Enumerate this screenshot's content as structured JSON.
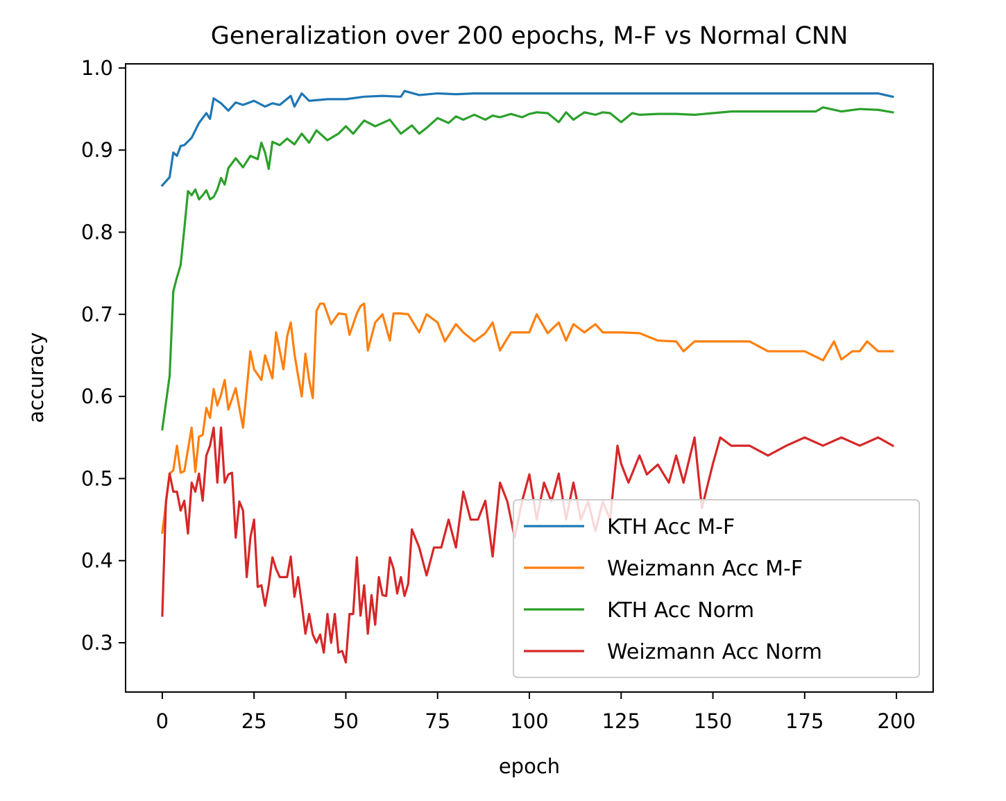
{
  "chart_data": {
    "type": "line",
    "title": "Generalization over 200 epochs, M-F vs Normal CNN",
    "xlabel": "epoch",
    "ylabel": "accuracy",
    "xlim": [
      -10,
      210
    ],
    "ylim": [
      0.24,
      1.005
    ],
    "xticks": [
      0,
      25,
      50,
      75,
      100,
      125,
      150,
      175,
      200
    ],
    "yticks": [
      0.3,
      0.4,
      0.5,
      0.6,
      0.7,
      0.8,
      0.9,
      1.0
    ],
    "grid": false,
    "legend_position": "lower-right",
    "series": [
      {
        "name": "KTH Acc M-F",
        "color": "#1f77b4",
        "x": [
          0,
          2,
          3,
          4,
          5,
          6,
          8,
          10,
          12,
          13,
          14,
          16,
          18,
          20,
          22,
          25,
          28,
          30,
          32,
          35,
          36,
          38,
          40,
          45,
          50,
          55,
          60,
          65,
          66,
          70,
          75,
          80,
          85,
          90,
          95,
          100,
          110,
          120,
          130,
          140,
          150,
          160,
          170,
          180,
          190,
          195,
          199
        ],
        "values": [
          0.857,
          0.867,
          0.897,
          0.893,
          0.905,
          0.906,
          0.915,
          0.933,
          0.945,
          0.938,
          0.963,
          0.957,
          0.948,
          0.958,
          0.955,
          0.96,
          0.953,
          0.957,
          0.955,
          0.966,
          0.953,
          0.969,
          0.96,
          0.962,
          0.962,
          0.965,
          0.966,
          0.965,
          0.972,
          0.967,
          0.969,
          0.968,
          0.969,
          0.969,
          0.969,
          0.969,
          0.969,
          0.969,
          0.969,
          0.969,
          0.969,
          0.969,
          0.969,
          0.969,
          0.969,
          0.969,
          0.965
        ]
      },
      {
        "name": "Weizmann Acc M-F",
        "color": "#ff7f0e",
        "x": [
          0,
          2,
          3,
          4,
          5,
          6,
          8,
          9,
          10,
          11,
          12,
          13,
          14,
          15,
          16,
          17,
          18,
          20,
          22,
          24,
          25,
          27,
          28,
          30,
          31,
          33,
          34,
          35,
          36,
          37,
          38,
          39,
          40,
          41,
          42,
          43,
          44,
          46,
          48,
          50,
          51,
          53,
          54,
          55,
          56,
          58,
          60,
          62,
          63,
          65,
          67,
          70,
          72,
          75,
          77,
          80,
          82,
          85,
          88,
          90,
          92,
          95,
          98,
          100,
          102,
          105,
          108,
          110,
          112,
          115,
          118,
          120,
          125,
          130,
          135,
          140,
          142,
          145,
          150,
          155,
          160,
          165,
          170,
          175,
          180,
          183,
          185,
          188,
          190,
          192,
          195,
          199
        ],
        "values": [
          0.434,
          0.506,
          0.51,
          0.54,
          0.507,
          0.509,
          0.562,
          0.508,
          0.551,
          0.553,
          0.586,
          0.574,
          0.609,
          0.589,
          0.602,
          0.62,
          0.584,
          0.61,
          0.562,
          0.655,
          0.633,
          0.62,
          0.65,
          0.622,
          0.678,
          0.633,
          0.673,
          0.69,
          0.652,
          0.625,
          0.6,
          0.652,
          0.62,
          0.598,
          0.704,
          0.713,
          0.713,
          0.688,
          0.701,
          0.7,
          0.675,
          0.701,
          0.71,
          0.713,
          0.656,
          0.69,
          0.7,
          0.668,
          0.701,
          0.701,
          0.7,
          0.678,
          0.7,
          0.69,
          0.667,
          0.688,
          0.678,
          0.667,
          0.677,
          0.69,
          0.656,
          0.678,
          0.678,
          0.678,
          0.7,
          0.677,
          0.69,
          0.668,
          0.688,
          0.678,
          0.688,
          0.678,
          0.678,
          0.677,
          0.668,
          0.667,
          0.655,
          0.667,
          0.667,
          0.667,
          0.667,
          0.655,
          0.655,
          0.655,
          0.644,
          0.667,
          0.645,
          0.655,
          0.655,
          0.667,
          0.655,
          0.655
        ]
      },
      {
        "name": "KTH Acc Norm",
        "color": "#2ca02c",
        "x": [
          0,
          2,
          3,
          4,
          5,
          6,
          7,
          8,
          9,
          10,
          11,
          12,
          13,
          14,
          15,
          16,
          17,
          18,
          20,
          22,
          24,
          26,
          27,
          28,
          29,
          30,
          32,
          34,
          36,
          38,
          40,
          42,
          45,
          48,
          50,
          52,
          55,
          58,
          60,
          62,
          65,
          68,
          70,
          72,
          75,
          78,
          80,
          82,
          85,
          88,
          90,
          92,
          95,
          98,
          100,
          102,
          105,
          108,
          110,
          112,
          115,
          118,
          120,
          122,
          125,
          128,
          130,
          135,
          140,
          145,
          150,
          155,
          160,
          165,
          170,
          175,
          178,
          180,
          185,
          190,
          195,
          199
        ],
        "values": [
          0.56,
          0.625,
          0.728,
          0.745,
          0.76,
          0.804,
          0.85,
          0.845,
          0.852,
          0.84,
          0.845,
          0.851,
          0.84,
          0.843,
          0.852,
          0.866,
          0.858,
          0.878,
          0.89,
          0.879,
          0.893,
          0.889,
          0.909,
          0.897,
          0.877,
          0.91,
          0.906,
          0.914,
          0.907,
          0.92,
          0.909,
          0.924,
          0.912,
          0.92,
          0.929,
          0.92,
          0.936,
          0.929,
          0.933,
          0.937,
          0.92,
          0.93,
          0.92,
          0.927,
          0.939,
          0.933,
          0.941,
          0.937,
          0.943,
          0.937,
          0.942,
          0.94,
          0.944,
          0.94,
          0.944,
          0.946,
          0.945,
          0.934,
          0.946,
          0.937,
          0.946,
          0.943,
          0.946,
          0.945,
          0.934,
          0.945,
          0.943,
          0.944,
          0.944,
          0.943,
          0.945,
          0.947,
          0.947,
          0.947,
          0.947,
          0.947,
          0.947,
          0.952,
          0.947,
          0.95,
          0.949,
          0.946
        ]
      },
      {
        "name": "Weizmann Acc Norm",
        "color": "#d62728",
        "x": [
          0,
          1,
          2,
          3,
          4,
          5,
          6,
          7,
          8,
          9,
          10,
          11,
          12,
          13,
          14,
          15,
          16,
          17,
          18,
          19,
          20,
          21,
          22,
          23,
          24,
          25,
          26,
          27,
          28,
          29,
          30,
          31,
          32,
          33,
          34,
          35,
          36,
          37,
          38,
          39,
          40,
          41,
          42,
          43,
          44,
          45,
          46,
          47,
          48,
          49,
          50,
          51,
          52,
          53,
          54,
          55,
          56,
          57,
          58,
          59,
          60,
          61,
          62,
          63,
          64,
          65,
          66,
          67,
          68,
          70,
          72,
          74,
          76,
          78,
          80,
          82,
          84,
          86,
          88,
          90,
          92,
          94,
          96,
          98,
          100,
          102,
          104,
          106,
          108,
          110,
          112,
          114,
          116,
          118,
          120,
          122,
          124,
          125,
          127,
          130,
          132,
          135,
          138,
          140,
          142,
          145,
          147,
          150,
          152,
          155,
          160,
          165,
          170,
          175,
          180,
          185,
          190,
          195,
          199
        ],
        "values": [
          0.333,
          0.472,
          0.506,
          0.484,
          0.484,
          0.461,
          0.473,
          0.433,
          0.495,
          0.484,
          0.506,
          0.473,
          0.528,
          0.54,
          0.562,
          0.495,
          0.562,
          0.495,
          0.505,
          0.507,
          0.428,
          0.472,
          0.461,
          0.38,
          0.428,
          0.45,
          0.368,
          0.37,
          0.345,
          0.37,
          0.404,
          0.39,
          0.38,
          0.38,
          0.38,
          0.405,
          0.356,
          0.38,
          0.347,
          0.311,
          0.335,
          0.31,
          0.3,
          0.31,
          0.288,
          0.335,
          0.3,
          0.335,
          0.288,
          0.29,
          0.276,
          0.335,
          0.335,
          0.404,
          0.333,
          0.37,
          0.311,
          0.358,
          0.322,
          0.38,
          0.358,
          0.357,
          0.404,
          0.39,
          0.36,
          0.38,
          0.357,
          0.372,
          0.438,
          0.416,
          0.382,
          0.416,
          0.416,
          0.45,
          0.416,
          0.484,
          0.45,
          0.45,
          0.473,
          0.405,
          0.495,
          0.472,
          0.428,
          0.472,
          0.505,
          0.45,
          0.495,
          0.472,
          0.506,
          0.45,
          0.495,
          0.45,
          0.472,
          0.436,
          0.472,
          0.45,
          0.54,
          0.518,
          0.495,
          0.528,
          0.505,
          0.517,
          0.495,
          0.528,
          0.495,
          0.55,
          0.464,
          0.518,
          0.55,
          0.54,
          0.54,
          0.528,
          0.54,
          0.55,
          0.54,
          0.55,
          0.54,
          0.55,
          0.54
        ]
      }
    ]
  }
}
